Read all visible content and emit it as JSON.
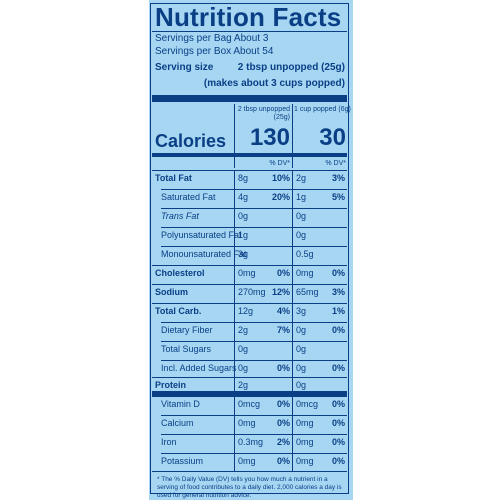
{
  "title": "Nutrition Facts",
  "servings": {
    "bag": "Servings per Bag About 3",
    "box": "Servings per Box About 54",
    "size_label": "Serving size",
    "size_value": "2 tbsp unpopped (25g)",
    "size_note": "(makes about 3 cups popped)"
  },
  "columns": {
    "col1_header": "2 tbsp unpopped",
    "col1_header_sub": "(25g)",
    "col2_header": "1 cup popped (6g)"
  },
  "calories": {
    "label": "Calories",
    "col1": "130",
    "col2": "30"
  },
  "dv_header": "% DV*",
  "rows": [
    {
      "label": "Total Fat",
      "bold": true,
      "a1": "8g",
      "p1": "10%",
      "a2": "2g",
      "p2": "3%"
    },
    {
      "label": "Saturated Fat",
      "bold": false,
      "a1": "4g",
      "p1": "20%",
      "a2": "1g",
      "p2": "5%"
    },
    {
      "label": "Trans Fat",
      "bold": false,
      "a1": "0g",
      "p1": "",
      "a2": "0g",
      "p2": ""
    },
    {
      "label": "Polyunsaturated Fat",
      "bold": false,
      "a1": "1g",
      "p1": "",
      "a2": "0g",
      "p2": ""
    },
    {
      "label": "Monounsaturated Fat",
      "bold": false,
      "a1": "3g",
      "p1": "",
      "a2": "0.5g",
      "p2": ""
    },
    {
      "label": "Cholesterol",
      "bold": true,
      "a1": "0mg",
      "p1": "0%",
      "a2": "0mg",
      "p2": "0%"
    },
    {
      "label": "Sodium",
      "bold": true,
      "a1": "270mg",
      "p1": "12%",
      "a2": "65mg",
      "p2": "3%"
    },
    {
      "label": "Total Carb.",
      "bold": true,
      "a1": "12g",
      "p1": "4%",
      "a2": "3g",
      "p2": "1%"
    },
    {
      "label": "Dietary Fiber",
      "bold": false,
      "a1": "2g",
      "p1": "7%",
      "a2": "0g",
      "p2": "0%"
    },
    {
      "label": "Total Sugars",
      "bold": false,
      "a1": "0g",
      "p1": "",
      "a2": "0g",
      "p2": ""
    },
    {
      "label": "Incl. Added Sugars",
      "bold": false,
      "a1": "0g",
      "p1": "0%",
      "a2": "0g",
      "p2": "0%"
    },
    {
      "label": "Protein",
      "bold": true,
      "a1": "2g",
      "p1": "",
      "a2": "0g",
      "p2": ""
    },
    {
      "label": "Vitamin D",
      "bold": false,
      "a1": "0mcg",
      "p1": "0%",
      "a2": "0mcg",
      "p2": "0%"
    },
    {
      "label": "Calcium",
      "bold": false,
      "a1": "0mg",
      "p1": "0%",
      "a2": "0mg",
      "p2": "0%"
    },
    {
      "label": "Iron",
      "bold": false,
      "a1": "0.3mg",
      "p1": "2%",
      "a2": "0mg",
      "p2": "0%"
    },
    {
      "label": "Potassium",
      "bold": false,
      "a1": "0mg",
      "p1": "0%",
      "a2": "0mg",
      "p2": "0%"
    }
  ],
  "footnote": "* The % Daily Value (DV) tells you how much a nutrient in a serving of food contributes to a daily diet. 2,000 calories a day is used for general nutrition advice.",
  "colors": {
    "panel": "#a6d6f2",
    "ink": "#0a3f86"
  }
}
